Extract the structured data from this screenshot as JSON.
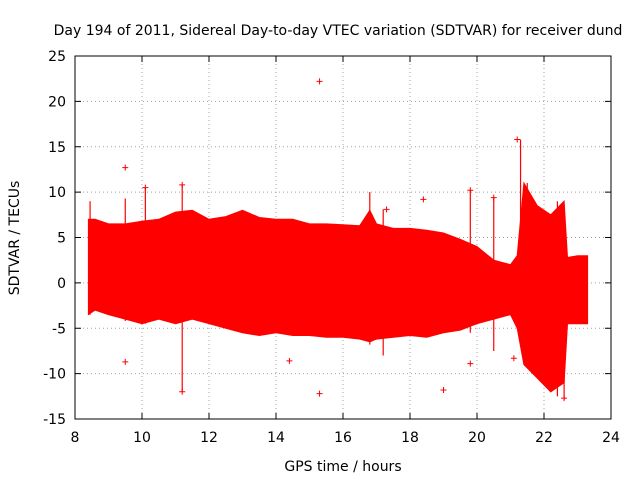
{
  "chart_data": {
    "type": "scatter",
    "title": "Day 194 of 2011, Sidereal Day-to-day VTEC variation (SDTVAR) for receiver dund",
    "xlabel": "GPS time / hours",
    "ylabel": "SDTVAR / TECUs",
    "xlim": [
      8,
      24
    ],
    "ylim": [
      -15,
      25
    ],
    "xticks": [
      8,
      10,
      12,
      14,
      16,
      18,
      20,
      22,
      24
    ],
    "yticks": [
      -15,
      -10,
      -5,
      0,
      5,
      10,
      15,
      20,
      25
    ],
    "grid": true,
    "legend": "none",
    "marker": "+",
    "color": "#ff0000",
    "series": [
      {
        "name": "SDTVAR band (upper / lower envelope)",
        "x": [
          8.4,
          8.6,
          9.0,
          9.5,
          10.0,
          10.5,
          11.0,
          11.5,
          12.0,
          12.5,
          13.0,
          13.5,
          14.0,
          14.5,
          15.0,
          15.5,
          16.0,
          16.5,
          16.8,
          17.0,
          17.5,
          18.0,
          18.5,
          19.0,
          19.5,
          20.0,
          20.5,
          21.0,
          21.2,
          21.4,
          21.8,
          22.2,
          22.6,
          22.7,
          23.0,
          23.3
        ],
        "upper": [
          7.0,
          7.0,
          6.5,
          6.5,
          6.8,
          7.0,
          7.8,
          8.0,
          7.0,
          7.3,
          8.0,
          7.2,
          7.0,
          7.0,
          6.5,
          6.5,
          6.4,
          6.3,
          8.0,
          6.5,
          6.0,
          6.0,
          5.8,
          5.5,
          4.8,
          4.0,
          2.5,
          2.0,
          3.0,
          11.0,
          8.5,
          7.5,
          9.0,
          2.8,
          3.0,
          3.0
        ],
        "lower": [
          -3.5,
          -3.0,
          -3.5,
          -4.0,
          -4.5,
          -4.0,
          -4.5,
          -4.0,
          -4.5,
          -5.0,
          -5.5,
          -5.8,
          -5.5,
          -5.8,
          -5.8,
          -6.0,
          -6.0,
          -6.2,
          -6.5,
          -6.2,
          -6.0,
          -5.8,
          -6.0,
          -5.5,
          -5.2,
          -4.5,
          -4.0,
          -3.5,
          -5.0,
          -9.0,
          -10.5,
          -12.0,
          -11.0,
          -4.5,
          -4.5,
          -4.5
        ]
      },
      {
        "name": "outliers",
        "x": [
          9.5,
          9.5,
          10.1,
          11.2,
          11.2,
          14.4,
          15.3,
          15.3,
          17.3,
          18.4,
          19.0,
          19.8,
          19.8,
          20.5,
          21.1,
          21.2,
          22.6
        ],
        "y": [
          12.7,
          -8.7,
          10.5,
          10.8,
          -12.0,
          -8.6,
          22.2,
          -12.2,
          8.1,
          9.2,
          -11.8,
          10.2,
          -8.9,
          9.4,
          -8.3,
          15.8,
          -12.7
        ]
      }
    ]
  }
}
